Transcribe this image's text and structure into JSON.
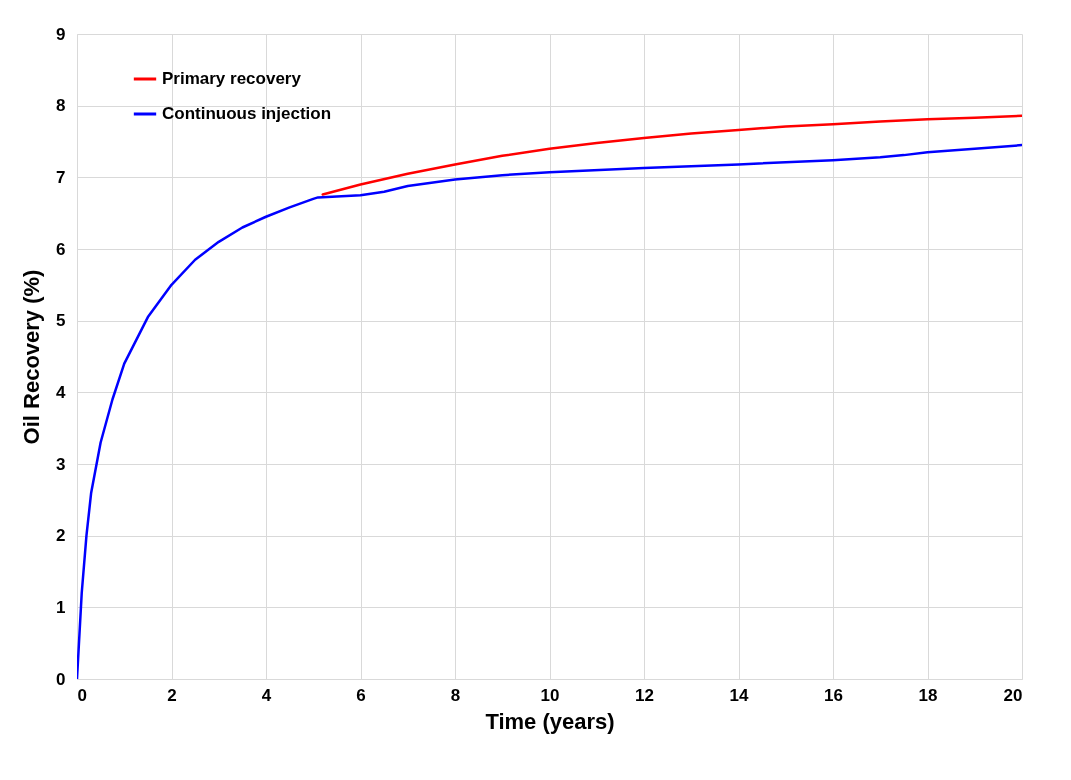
{
  "chart_data": {
    "type": "line",
    "xlabel": "Time (years)",
    "ylabel": "Oil Recovery (%)",
    "xlim": [
      0,
      20
    ],
    "xticks": [
      0,
      2,
      4,
      6,
      8,
      10,
      12,
      14,
      16,
      18,
      20
    ],
    "ylim": [
      0,
      9
    ],
    "yticks": [
      0,
      1,
      2,
      3,
      4,
      5,
      6,
      7,
      8,
      9
    ],
    "grid": true,
    "legend": "top left",
    "marker": "none",
    "line_style": "solid",
    "series": [
      {
        "name": "Primary recovery",
        "color": "#ff0000",
        "x": [
          5.2,
          6,
          7,
          8,
          9,
          10,
          11,
          12,
          13,
          14,
          15,
          16,
          17,
          18,
          19,
          20
        ],
        "values": [
          6.76,
          6.9,
          7.05,
          7.18,
          7.3,
          7.4,
          7.48,
          7.55,
          7.61,
          7.66,
          7.71,
          7.74,
          7.78,
          7.81,
          7.83,
          7.86
        ]
      },
      {
        "name": "Continuous injection",
        "color": "#0000ff",
        "x": [
          0,
          0.1,
          0.2,
          0.3,
          0.5,
          0.75,
          1,
          1.5,
          2,
          2.5,
          3,
          3.5,
          4,
          4.5,
          5,
          5.1,
          6,
          6.5,
          7,
          8,
          9,
          10,
          12,
          14,
          16,
          17,
          17.5,
          18,
          19,
          20
        ],
        "values": [
          0,
          1.2,
          2.0,
          2.6,
          3.3,
          3.9,
          4.4,
          5.05,
          5.5,
          5.85,
          6.1,
          6.3,
          6.45,
          6.58,
          6.7,
          6.72,
          6.75,
          6.8,
          6.88,
          6.97,
          7.03,
          7.07,
          7.13,
          7.18,
          7.24,
          7.28,
          7.31,
          7.35,
          7.4,
          7.45
        ]
      }
    ]
  }
}
